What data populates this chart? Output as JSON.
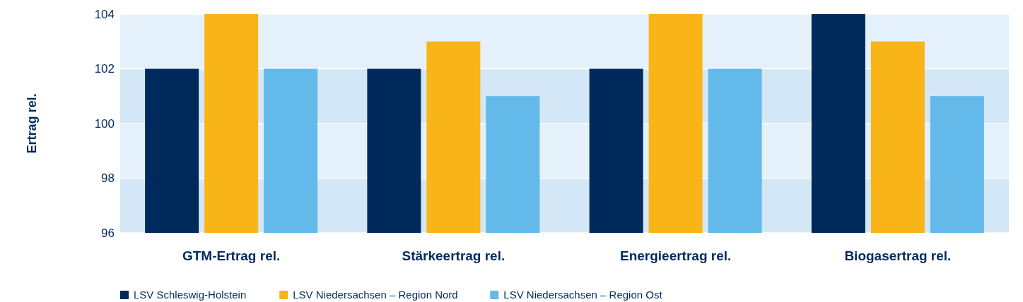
{
  "chart_data": {
    "type": "bar",
    "ylabel": "Ertrag rel.",
    "categories": [
      "GTM-Ertrag rel.",
      "Stärkeertrag rel.",
      "Energieertrag rel.",
      "Biogasertrag rel."
    ],
    "series": [
      {
        "name": "LSV Schleswig-Holstein",
        "color": "#002a5c",
        "values": [
          102,
          102,
          102,
          104
        ]
      },
      {
        "name": "LSV Niedersachsen – Region Nord",
        "color": "#f9b418",
        "values": [
          104,
          103,
          104,
          103
        ]
      },
      {
        "name": "LSV Niedersachsen – Region Ost",
        "color": "#63b9e9",
        "values": [
          102,
          101,
          102,
          101
        ]
      }
    ],
    "ylim": [
      96,
      104
    ],
    "yticks": [
      96,
      98,
      100,
      102,
      104
    ],
    "grid": "y",
    "legend": "bottom"
  }
}
